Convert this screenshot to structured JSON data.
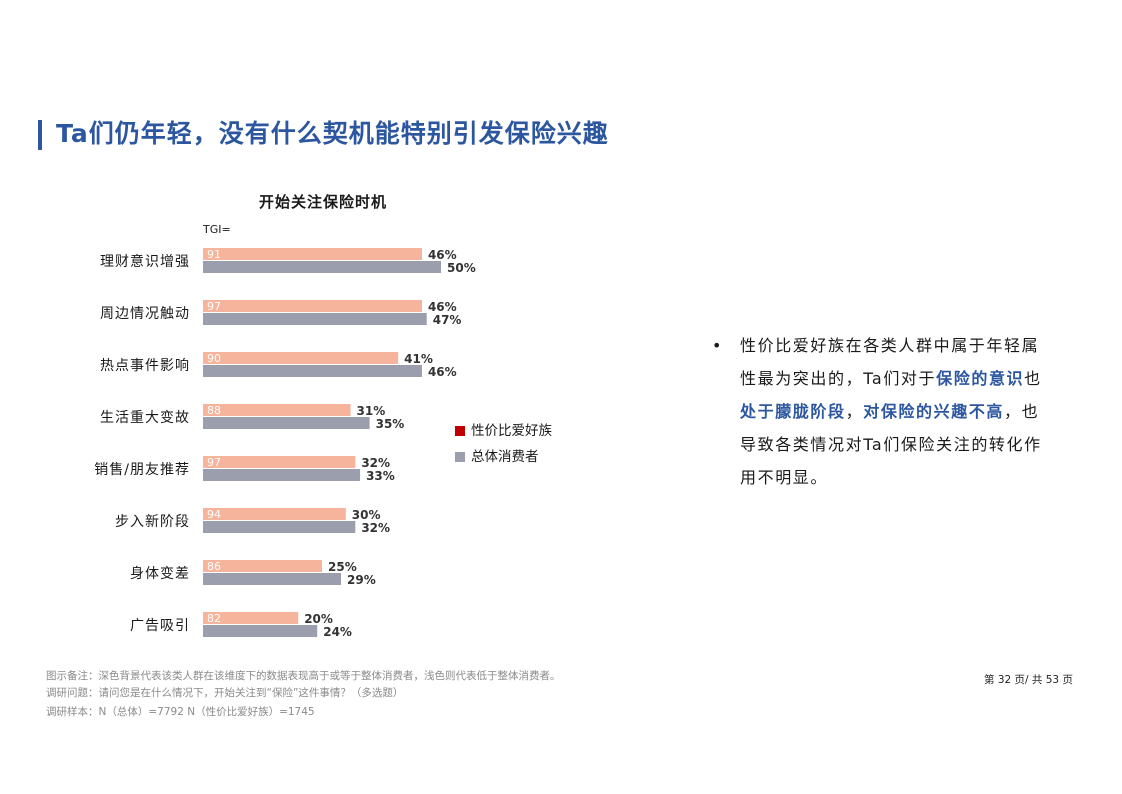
{
  "header": {
    "title": "Ta们仍年轻，没有什么契机能特别引发保险兴趣"
  },
  "chart_data": {
    "type": "bar",
    "orientation": "horizontal",
    "title": "开始关注保险时机",
    "tgi_label": "TGI=",
    "categories": [
      "理财意识增强",
      "周边情况触动",
      "热点事件影响",
      "生活重大变故",
      "销售/朋友推荐",
      "步入新阶段",
      "身体变差",
      "广告吸引"
    ],
    "series": [
      {
        "name": "性价比爱好族",
        "values": [
          46,
          46,
          41,
          31,
          32,
          30,
          25,
          20
        ],
        "labels": [
          "46%",
          "46%",
          "41%",
          "31%",
          "32%",
          "30%",
          "25%",
          "20%"
        ]
      },
      {
        "name": "总体消费者",
        "values": [
          50,
          47,
          46,
          35,
          33,
          32,
          29,
          24
        ],
        "labels": [
          "50%",
          "47%",
          "46%",
          "35%",
          "33%",
          "32%",
          "29%",
          "24%"
        ]
      }
    ],
    "tgi": [
      "91",
      "97",
      "90",
      "88",
      "97",
      "94",
      "86",
      "82"
    ],
    "xlim": [
      0,
      50
    ],
    "legend_position": "right",
    "colors": {
      "series1_bar": "#f5b49b",
      "series2_bar": "#9b9eac",
      "legend_series1": "#c00000",
      "legend_series2": "#9b9eac"
    }
  },
  "bullet": {
    "dot": "•",
    "p1": "性价比爱好族在各类人群中属于年轻属性最为突出的，Ta们对于",
    "h1": "保险的意识",
    "p2": "也",
    "h2": "处于朦胧阶段",
    "p3": "，",
    "h3": "对保险的兴趣不高",
    "p4": "，也导致各类情况对Ta们保险关注的转化作用不明显。"
  },
  "notes": {
    "line1": "图示备注：深色背景代表该类人群在该维度下的数据表现高于或等于整体消费者，浅色则代表低于整体消费者。",
    "line2": "调研问题：请问您是在什么情况下，开始关注到“保险”这件事情？（多选题）",
    "line3": "调研样本：N（总体）=7792    N（性价比爱好族）=1745"
  },
  "pagination": {
    "text": "第 32 页/ 共 53 页"
  }
}
